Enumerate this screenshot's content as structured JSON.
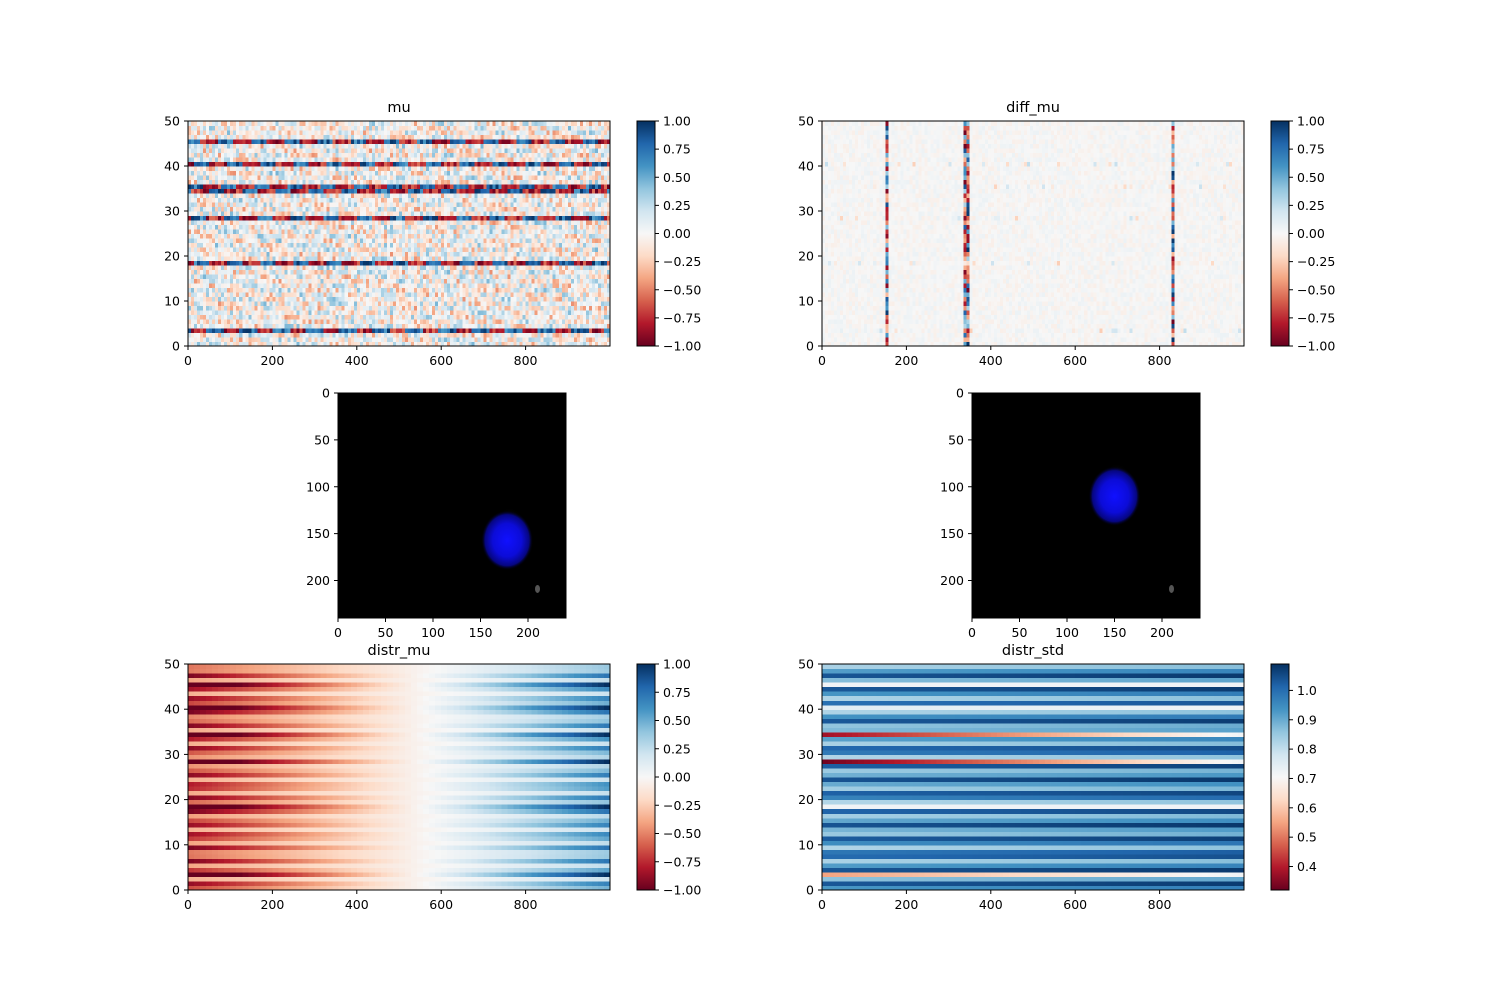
{
  "chart_data": [
    {
      "type": "heatmap",
      "title": "mu",
      "xlim": [
        0,
        1000
      ],
      "ylim": [
        0,
        50
      ],
      "xticks": [
        0,
        200,
        400,
        600,
        800
      ],
      "yticks": [
        0,
        10,
        20,
        30,
        40,
        50
      ],
      "colormap": "RdBu",
      "clim": [
        -1,
        1
      ],
      "colorbar_ticks": [
        1.0,
        0.75,
        0.5,
        0.25,
        0.0,
        -0.25,
        -0.5,
        -0.75,
        -1.0
      ],
      "colorbar_labels": [
        "1.00",
        "0.75",
        "0.50",
        "0.25",
        "0.00",
        "−0.25",
        "−0.50",
        "−0.75",
        "−1.00"
      ],
      "strong_rows": [
        3,
        18,
        28,
        34,
        35,
        40,
        45
      ]
    },
    {
      "type": "heatmap",
      "title": "diff_mu",
      "xlim": [
        0,
        1000
      ],
      "ylim": [
        0,
        50
      ],
      "xticks": [
        0,
        200,
        400,
        600,
        800
      ],
      "yticks": [
        0,
        10,
        20,
        30,
        40,
        50
      ],
      "colormap": "RdBu",
      "clim": [
        -1,
        1
      ],
      "colorbar_ticks": [
        1.0,
        0.75,
        0.5,
        0.25,
        0.0,
        -0.25,
        -0.5,
        -0.75,
        -1.0
      ],
      "colorbar_labels": [
        "1.00",
        "0.75",
        "0.50",
        "0.25",
        "0.00",
        "−0.25",
        "−0.50",
        "−0.75",
        "−1.00"
      ],
      "spike_columns": [
        152,
        344,
        834
      ]
    },
    {
      "type": "image",
      "xlim": [
        0,
        240
      ],
      "ylim": [
        240,
        0
      ],
      "xticks": [
        0,
        50,
        100,
        150,
        200
      ],
      "yticks": [
        0,
        50,
        100,
        150,
        200
      ],
      "blob_center": [
        178,
        157
      ]
    },
    {
      "type": "image",
      "xlim": [
        0,
        240
      ],
      "ylim": [
        240,
        0
      ],
      "xticks": [
        0,
        50,
        100,
        150,
        200
      ],
      "yticks": [
        0,
        50,
        100,
        150,
        200
      ],
      "blob_center": [
        150,
        110
      ]
    },
    {
      "type": "heatmap",
      "title": "distr_mu",
      "xlim": [
        0,
        1000
      ],
      "ylim": [
        0,
        50
      ],
      "xticks": [
        0,
        200,
        400,
        600,
        800
      ],
      "yticks": [
        0,
        10,
        20,
        30,
        40,
        50
      ],
      "colormap": "RdBu",
      "clim": [
        -1,
        1
      ],
      "colorbar_ticks": [
        1.0,
        0.75,
        0.5,
        0.25,
        0.0,
        -0.25,
        -0.5,
        -0.75,
        -1.0
      ],
      "colorbar_labels": [
        "1.00",
        "0.75",
        "0.50",
        "0.25",
        "0.00",
        "−0.25",
        "−0.50",
        "−0.75",
        "−1.00"
      ]
    },
    {
      "type": "heatmap",
      "title": "distr_std",
      "xlim": [
        0,
        1000
      ],
      "ylim": [
        0,
        50
      ],
      "xticks": [
        0,
        200,
        400,
        600,
        800
      ],
      "yticks": [
        0,
        10,
        20,
        30,
        40,
        50
      ],
      "colormap": "RdBu",
      "clim": [
        0.32,
        1.09
      ],
      "colorbar_ticks": [
        1.0,
        0.9,
        0.8,
        0.7,
        0.6,
        0.5,
        0.4
      ],
      "colorbar_labels": [
        "1.0",
        "0.9",
        "0.8",
        "0.7",
        "0.6",
        "0.5",
        "0.4"
      ],
      "low_rows": [
        3,
        18,
        28,
        34,
        40,
        45
      ]
    }
  ]
}
